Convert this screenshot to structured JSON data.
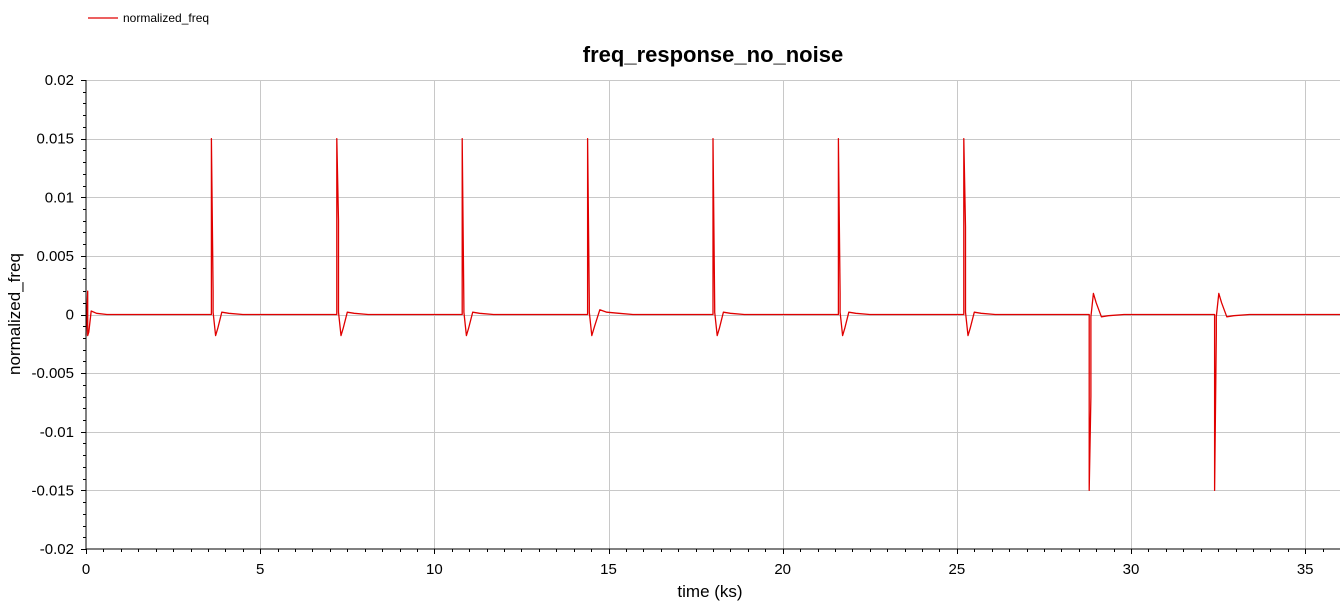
{
  "chart_data": {
    "type": "line",
    "title": "freq_response_no_noise",
    "xlabel": "time (ks)",
    "ylabel": "normalized_freq",
    "xlim": [
      0,
      36
    ],
    "ylim": [
      -0.02,
      0.02
    ],
    "x_ticks": [
      0,
      5,
      10,
      15,
      20,
      25,
      30,
      35
    ],
    "y_ticks": [
      0.02,
      0.015,
      0.01,
      0.005,
      0,
      -0.005,
      -0.01,
      -0.015,
      -0.02
    ],
    "y_tick_labels": [
      "0.02",
      "0.015",
      "0.01",
      "0.005",
      "0",
      "-0.005",
      "-0.01",
      "-0.015",
      "-0.02"
    ],
    "grid": true,
    "legend_placement": "top-left",
    "series": [
      {
        "name": "normalized_freq",
        "color": "#e00000",
        "x": [
          0,
          0.05,
          0.05,
          0.08,
          0.15,
          0.3,
          0.6,
          1.5,
          3.0,
          3.6,
          3.6,
          3.65,
          3.65,
          3.72,
          3.78,
          3.9,
          4.1,
          4.5,
          6.8,
          7.2,
          7.2,
          7.25,
          7.25,
          7.32,
          7.38,
          7.5,
          7.7,
          8.1,
          10.4,
          10.8,
          10.8,
          10.85,
          10.85,
          10.92,
          10.98,
          11.1,
          11.3,
          11.7,
          14.0,
          14.4,
          14.4,
          14.45,
          14.45,
          14.52,
          14.6,
          14.75,
          14.95,
          15.3,
          15.7,
          17.6,
          18.0,
          18.0,
          18.05,
          18.05,
          18.12,
          18.18,
          18.3,
          18.5,
          18.9,
          21.2,
          21.6,
          21.6,
          21.65,
          21.65,
          21.72,
          21.78,
          21.9,
          22.1,
          22.5,
          24.8,
          25.2,
          25.2,
          25.25,
          25.25,
          25.32,
          25.38,
          25.5,
          25.7,
          26.1,
          28.4,
          28.8,
          28.8,
          28.85,
          28.85,
          28.92,
          29.0,
          29.15,
          29.35,
          29.8,
          32.0,
          32.4,
          32.4,
          32.45,
          32.45,
          32.52,
          32.6,
          32.75,
          32.95,
          33.4,
          36.0
        ],
        "y": [
          -0.0018,
          0.002,
          -0.0018,
          -0.0015,
          0.0003,
          0.0001,
          0,
          0,
          0,
          0,
          0.015,
          0.002,
          0.0002,
          -0.0018,
          -0.0012,
          0.0002,
          0.0001,
          0,
          0,
          0,
          0.015,
          0.008,
          0.0002,
          -0.0018,
          -0.0012,
          0.0002,
          0.0001,
          0,
          0,
          0,
          0.015,
          0.0005,
          0.0002,
          -0.0018,
          -0.0012,
          0.0002,
          0.0001,
          0,
          0,
          0,
          0.015,
          0.001,
          0.0002,
          -0.0018,
          -0.001,
          0.0004,
          0.0002,
          0.0001,
          0,
          0,
          0,
          0.015,
          0.0005,
          0.0002,
          -0.0018,
          -0.0012,
          0.0002,
          0.0001,
          0,
          0,
          0,
          0.015,
          0.0018,
          0.0002,
          -0.0018,
          -0.0012,
          0.0002,
          0.0001,
          0,
          0,
          0,
          0.015,
          0.0075,
          0.0002,
          -0.0018,
          -0.0012,
          0.0002,
          0.0001,
          0,
          0,
          0,
          -0.015,
          -0.007,
          -0.0002,
          0.0018,
          0.001,
          -0.0002,
          -0.0001,
          0,
          0,
          0,
          -0.015,
          -0.0017,
          -0.0002,
          0.0018,
          0.001,
          -0.0002,
          -0.0001,
          0,
          0
        ]
      }
    ]
  }
}
